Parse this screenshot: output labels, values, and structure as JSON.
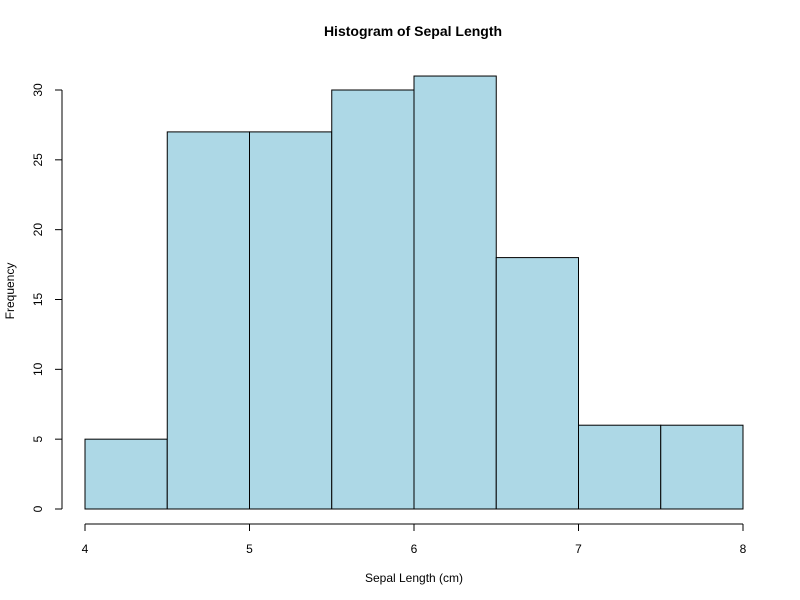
{
  "chart_data": {
    "type": "bar",
    "title": "Histogram of Sepal Length",
    "xlabel": "Sepal Length (cm)",
    "ylabel": "Frequency",
    "bins": [
      {
        "start": 4.0,
        "end": 4.5,
        "count": 5
      },
      {
        "start": 4.5,
        "end": 5.0,
        "count": 27
      },
      {
        "start": 5.0,
        "end": 5.5,
        "count": 27
      },
      {
        "start": 5.5,
        "end": 6.0,
        "count": 30
      },
      {
        "start": 6.0,
        "end": 6.5,
        "count": 31
      },
      {
        "start": 6.5,
        "end": 7.0,
        "count": 18
      },
      {
        "start": 7.0,
        "end": 7.5,
        "count": 6
      },
      {
        "start": 7.5,
        "end": 8.0,
        "count": 6
      }
    ],
    "xlim": [
      4,
      8
    ],
    "ylim": [
      0,
      30
    ],
    "xticks": [
      "4",
      "5",
      "6",
      "7",
      "8"
    ],
    "yticks": [
      "0",
      "5",
      "10",
      "15",
      "20",
      "25",
      "30"
    ],
    "grid": false,
    "bar_color": "#ADD8E6",
    "edge_color": "#000000"
  }
}
